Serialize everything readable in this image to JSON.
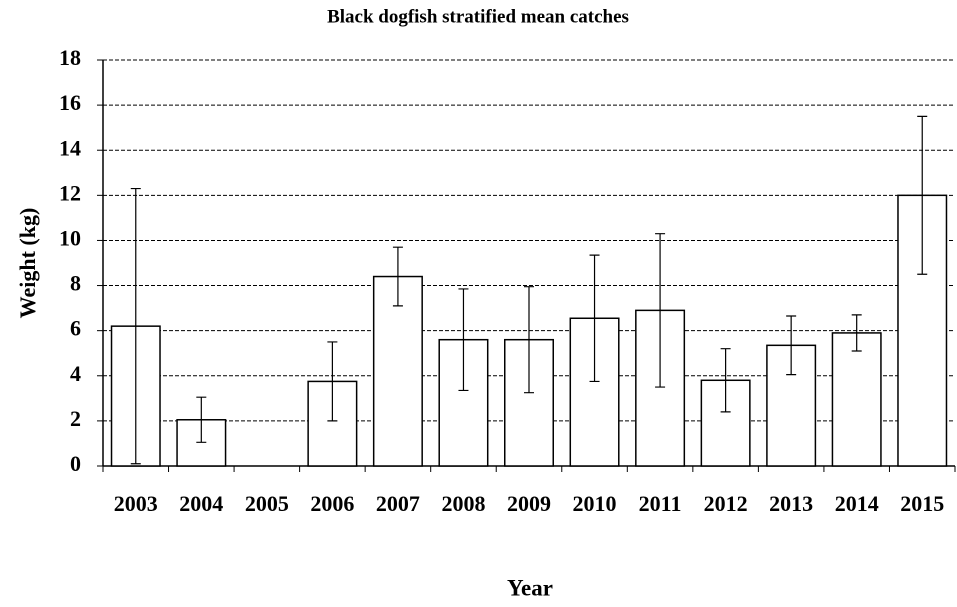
{
  "chart_data": {
    "type": "bar",
    "title": "Black dogfish stratified mean catches",
    "x_label": "Year",
    "y_label": "Weight (kg)",
    "categories": [
      "2003",
      "2004",
      "2005",
      "2006",
      "2007",
      "2008",
      "2009",
      "2010",
      "2011",
      "2012",
      "2013",
      "2014",
      "2015"
    ],
    "values": [
      6.2,
      2.05,
      null,
      3.75,
      8.4,
      5.6,
      5.6,
      6.55,
      6.9,
      3.8,
      5.35,
      5.9,
      12.0
    ],
    "errors": [
      6.1,
      1.0,
      null,
      1.75,
      1.3,
      2.25,
      2.35,
      2.8,
      3.4,
      1.4,
      1.3,
      0.8,
      3.5
    ],
    "color": "#ffffff",
    "ylim": [
      0,
      18
    ],
    "yticks": [
      0,
      2,
      4,
      6,
      8,
      10,
      12,
      14,
      16,
      18
    ],
    "grid": true
  }
}
